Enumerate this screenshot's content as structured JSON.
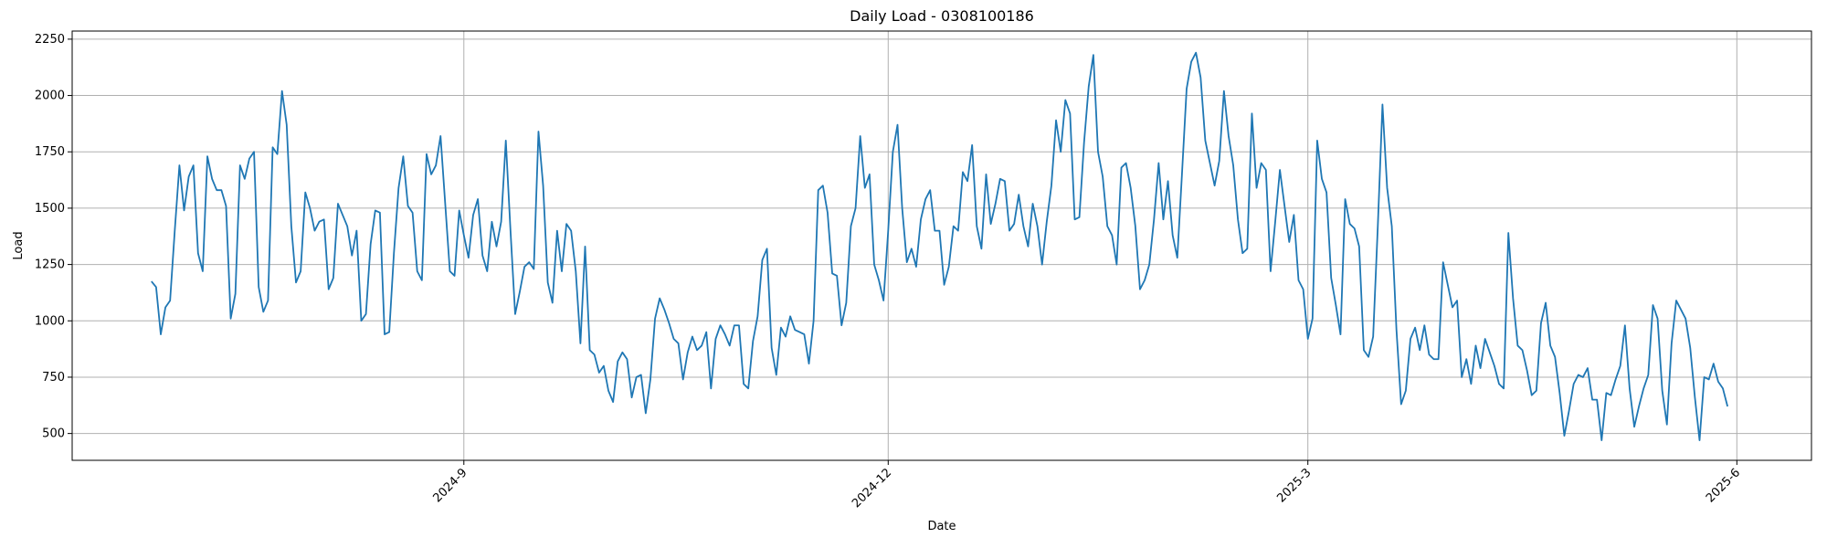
{
  "chart_data": {
    "type": "line",
    "title": "Daily Load - 0308100186",
    "x_label": "Date",
    "y_label": "Load",
    "grid": true,
    "series": [
      {
        "name": "Load",
        "color": "#1f77b4",
        "values": [
          1175,
          1150,
          940,
          1060,
          1090,
          1400,
          1690,
          1490,
          1640,
          1690,
          1300,
          1220,
          1730,
          1630,
          1580,
          1580,
          1510,
          1010,
          1120,
          1690,
          1630,
          1720,
          1750,
          1150,
          1040,
          1090,
          1770,
          1740,
          2020,
          1870,
          1420,
          1170,
          1220,
          1570,
          1500,
          1400,
          1440,
          1450,
          1140,
          1190,
          1520,
          1470,
          1420,
          1290,
          1400,
          1000,
          1030,
          1340,
          1490,
          1480,
          940,
          950,
          1300,
          1590,
          1730,
          1510,
          1480,
          1220,
          1180,
          1740,
          1650,
          1690,
          1820,
          1520,
          1220,
          1200,
          1490,
          1380,
          1280,
          1470,
          1540,
          1290,
          1220,
          1440,
          1330,
          1440,
          1800,
          1400,
          1030,
          1130,
          1240,
          1260,
          1230,
          1840,
          1600,
          1170,
          1080,
          1400,
          1220,
          1430,
          1400,
          1220,
          900,
          1330,
          870,
          850,
          770,
          800,
          690,
          640,
          820,
          860,
          830,
          660,
          750,
          760,
          590,
          740,
          1010,
          1100,
          1050,
          990,
          920,
          900,
          740,
          860,
          930,
          870,
          890,
          950,
          700,
          920,
          980,
          940,
          890,
          980,
          980,
          720,
          700,
          910,
          1020,
          1270,
          1320,
          880,
          760,
          970,
          930,
          1020,
          960,
          950,
          940,
          810,
          1000,
          1580,
          1600,
          1480,
          1210,
          1200,
          980,
          1080,
          1420,
          1500,
          1820,
          1590,
          1650,
          1250,
          1180,
          1090,
          1400,
          1750,
          1870,
          1500,
          1260,
          1320,
          1240,
          1450,
          1540,
          1580,
          1400,
          1400,
          1160,
          1240,
          1420,
          1400,
          1660,
          1620,
          1780,
          1420,
          1320,
          1650,
          1430,
          1520,
          1630,
          1620,
          1400,
          1430,
          1560,
          1420,
          1330,
          1520,
          1420,
          1250,
          1440,
          1600,
          1890,
          1750,
          1980,
          1920,
          1450,
          1460,
          1790,
          2040,
          2180,
          1750,
          1640,
          1420,
          1380,
          1250,
          1680,
          1700,
          1590,
          1420,
          1140,
          1180,
          1250,
          1450,
          1700,
          1450,
          1620,
          1380,
          1280,
          1650,
          2030,
          2150,
          2190,
          2080,
          1800,
          1700,
          1600,
          1710,
          2020,
          1820,
          1690,
          1450,
          1300,
          1320,
          1920,
          1590,
          1700,
          1670,
          1220,
          1440,
          1670,
          1510,
          1350,
          1470,
          1180,
          1140,
          920,
          1010,
          1800,
          1630,
          1570,
          1190,
          1070,
          940,
          1540,
          1430,
          1410,
          1330,
          870,
          840,
          930,
          1420,
          1960,
          1590,
          1420,
          960,
          630,
          690,
          920,
          970,
          870,
          980,
          850,
          830,
          830,
          1260,
          1160,
          1060,
          1090,
          750,
          830,
          720,
          890,
          790,
          920,
          860,
          800,
          720,
          700,
          1390,
          1100,
          890,
          870,
          780,
          670,
          690,
          990,
          1080,
          890,
          840,
          680,
          490,
          600,
          720,
          760,
          750,
          790,
          650,
          650,
          470,
          680,
          670,
          740,
          800,
          980,
          700,
          530,
          620,
          700,
          760,
          1070,
          1010,
          690,
          540,
          900,
          1090,
          1050,
          1010,
          880,
          660,
          470,
          750,
          740,
          810,
          730,
          700,
          620
        ]
      }
    ],
    "xlim": [
      -17,
      356
    ],
    "xticks": [
      {
        "value": 67,
        "label": "2024-9"
      },
      {
        "value": 158,
        "label": "2024-12"
      },
      {
        "value": 248,
        "label": "2025-3"
      },
      {
        "value": 340,
        "label": "2025-6"
      }
    ],
    "ylim": [
      381,
      2286
    ],
    "yticks": [
      500,
      750,
      1000,
      1250,
      1500,
      1750,
      2000,
      2250
    ]
  }
}
